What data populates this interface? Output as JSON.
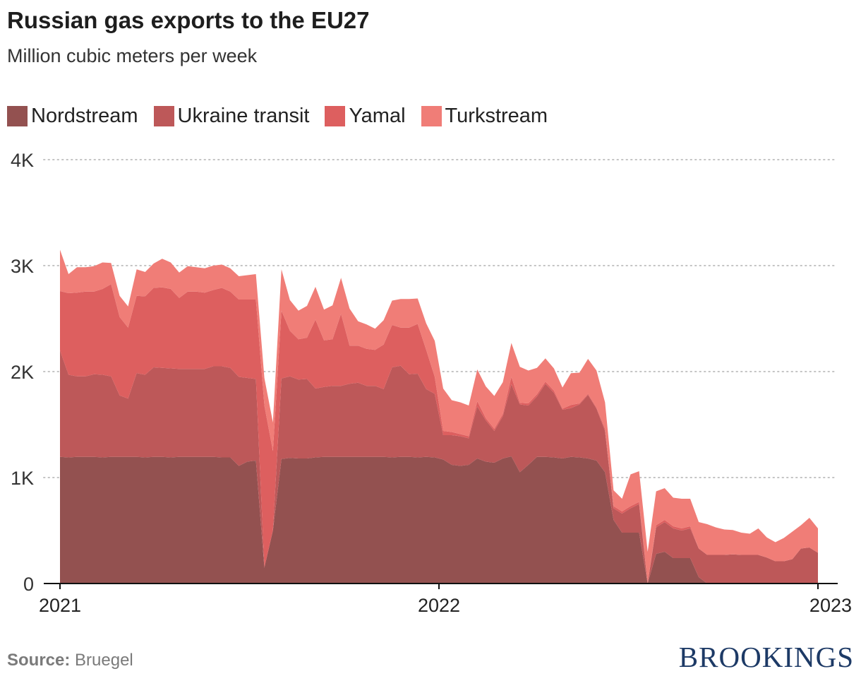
{
  "title": "Russian gas exports to the EU27",
  "subtitle": "Million cubic meters per week",
  "footer": {
    "source_label": "Source:",
    "source_value": " Bruegel",
    "logo": "BROOKINGS"
  },
  "chart_data": {
    "type": "area",
    "stacked": true,
    "x_range": [
      2021,
      2023
    ],
    "x_ticks": [
      "2021",
      "2022",
      "2023"
    ],
    "y_ticks": [
      "0",
      "1K",
      "2K",
      "3K",
      "4K"
    ],
    "ylim": [
      0,
      4000
    ],
    "grid": "horizontal dotted",
    "legend": "top-left",
    "series": [
      {
        "name": "Nordstream",
        "color": "#935150",
        "values": [
          1195,
          1190,
          1195,
          1195,
          1195,
          1190,
          1195,
          1195,
          1195,
          1195,
          1190,
          1195,
          1195,
          1190,
          1195,
          1195,
          1195,
          1195,
          1195,
          1190,
          1190,
          1110,
          1150,
          1160,
          150,
          500,
          1175,
          1185,
          1180,
          1180,
          1190,
          1195,
          1195,
          1195,
          1195,
          1195,
          1195,
          1195,
          1195,
          1190,
          1195,
          1195,
          1190,
          1195,
          1190,
          1170,
          1120,
          1110,
          1120,
          1180,
          1150,
          1140,
          1180,
          1200,
          1050,
          1120,
          1195,
          1195,
          1190,
          1180,
          1195,
          1190,
          1180,
          1160,
          1050,
          600,
          480,
          480,
          480,
          0,
          280,
          300,
          240,
          240,
          240,
          60,
          0,
          0,
          0,
          0,
          0,
          0,
          0,
          0,
          0,
          0,
          0,
          0,
          0,
          0
        ]
      },
      {
        "name": "Ukraine transit",
        "color": "#bd5859",
        "values": [
          1005,
          780,
          760,
          760,
          780,
          780,
          760,
          580,
          550,
          790,
          780,
          845,
          840,
          840,
          830,
          830,
          830,
          830,
          855,
          860,
          845,
          840,
          790,
          770,
          0,
          0,
          760,
          770,
          745,
          750,
          650,
          660,
          670,
          670,
          690,
          700,
          670,
          670,
          640,
          850,
          860,
          780,
          790,
          640,
          600,
          230,
          280,
          280,
          250,
          490,
          390,
          300,
          400,
          680,
          640,
          560,
          570,
          690,
          610,
          460,
          460,
          500,
          600,
          490,
          390,
          110,
          180,
          230,
          270,
          0,
          250,
          280,
          280,
          260,
          280,
          270,
          270,
          270,
          270,
          275,
          270,
          270,
          270,
          245,
          210,
          210,
          230,
          330,
          340,
          290
        ]
      },
      {
        "name": "Yamal",
        "color": "#dd5f5f",
        "values": [
          560,
          770,
          790,
          800,
          780,
          810,
          870,
          740,
          670,
          730,
          740,
          750,
          760,
          750,
          670,
          730,
          730,
          720,
          720,
          740,
          720,
          730,
          740,
          750,
          1530,
          750,
          640,
          430,
          380,
          390,
          650,
          440,
          440,
          680,
          360,
          350,
          350,
          340,
          420,
          400,
          360,
          440,
          470,
          370,
          160,
          40,
          30,
          20,
          20,
          50,
          20,
          20,
          20,
          70,
          15,
          20,
          20,
          20,
          20,
          10,
          30,
          10,
          10,
          10,
          20,
          20,
          20,
          20,
          20,
          0,
          20,
          20,
          20,
          20,
          20,
          0,
          0,
          0,
          0,
          0,
          0,
          0,
          0,
          0,
          0,
          0,
          0,
          0,
          0,
          0
        ]
      },
      {
        "name": "Turkstream",
        "color": "#f07d77",
        "values": [
          390,
          180,
          240,
          230,
          240,
          250,
          200,
          200,
          200,
          250,
          230,
          230,
          270,
          250,
          240,
          240,
          230,
          230,
          230,
          220,
          220,
          220,
          230,
          240,
          260,
          270,
          390,
          290,
          270,
          300,
          310,
          290,
          320,
          340,
          350,
          230,
          230,
          200,
          230,
          230,
          270,
          270,
          240,
          250,
          340,
          400,
          300,
          300,
          290,
          300,
          300,
          310,
          300,
          320,
          340,
          310,
          250,
          220,
          210,
          200,
          300,
          290,
          330,
          350,
          250,
          150,
          120,
          300,
          290,
          300,
          320,
          300,
          270,
          280,
          260,
          250,
          290,
          260,
          240,
          230,
          210,
          200,
          250,
          190,
          180,
          220,
          260,
          220,
          280,
          230
        ]
      }
    ]
  }
}
